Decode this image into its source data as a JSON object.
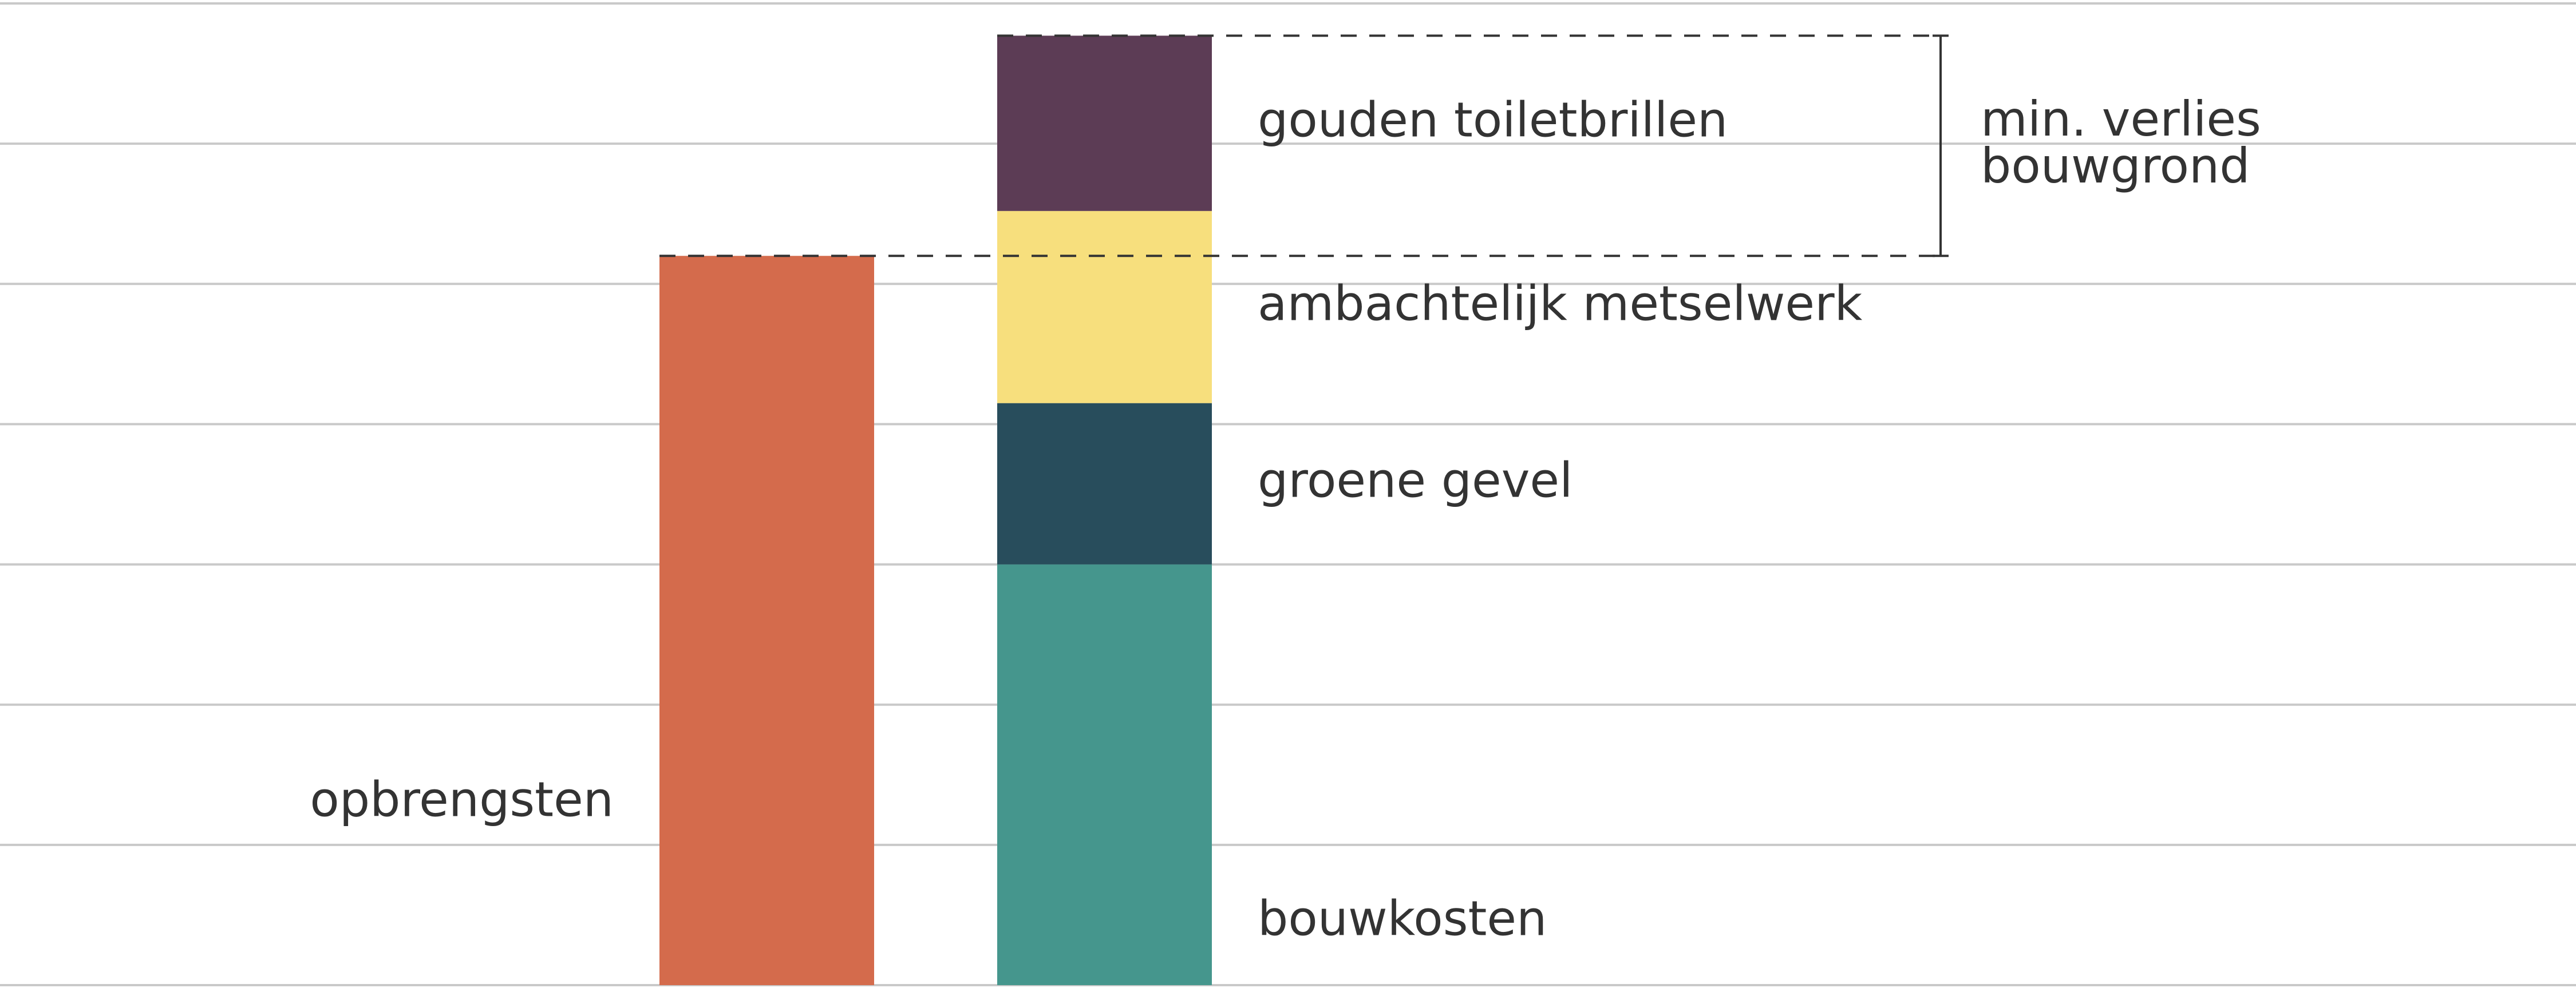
{
  "chart_data": {
    "type": "bar",
    "stacked": true,
    "grid": true,
    "axes_labels_shown": false,
    "ylim": [
      0,
      7
    ],
    "gridlines": [
      0,
      1,
      2,
      3,
      4,
      5,
      6,
      7
    ],
    "bars": [
      {
        "segments": [
          {
            "name": "opbrengsten",
            "value": 5.2,
            "color": "#D46B4C"
          }
        ],
        "label": "opbrengsten",
        "label_side": "left"
      },
      {
        "segments": [
          {
            "name": "bouwkosten",
            "value": 3.0,
            "color": "#45968D"
          },
          {
            "name": "groene gevel",
            "value": 1.15,
            "color": "#284D5C"
          },
          {
            "name": "ambachtelijk metselwerk",
            "value": 1.37,
            "color": "#F7DF7D"
          },
          {
            "name": "gouden toiletbrillen",
            "value": 1.25,
            "color": "#5C3C55"
          }
        ],
        "label_side": "right"
      }
    ],
    "annotation": {
      "text_lines": [
        "min. verlies",
        "bouwgrond"
      ],
      "from_value": 5.2,
      "to_value": 6.77
    }
  }
}
